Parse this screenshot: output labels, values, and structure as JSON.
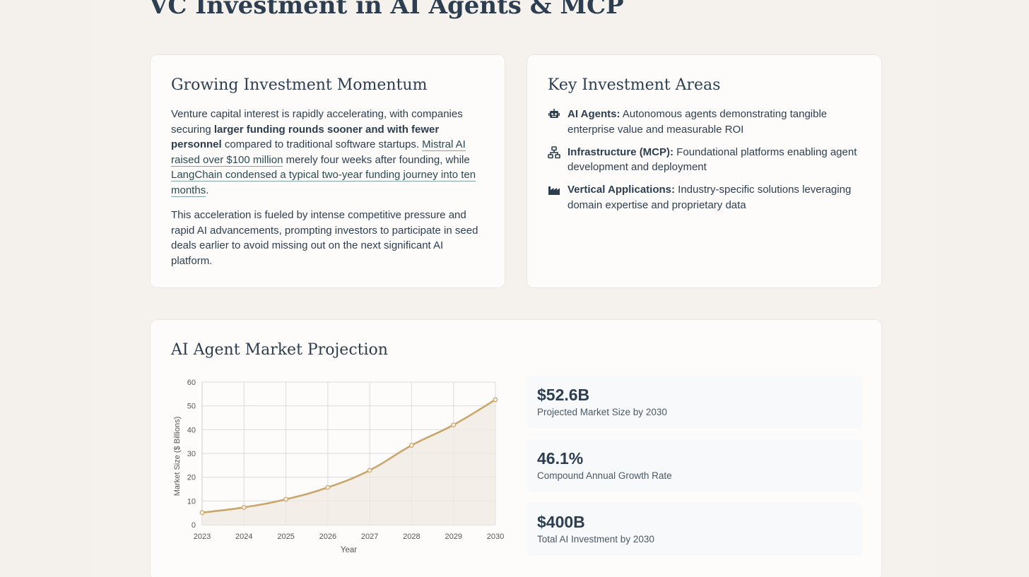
{
  "page": {
    "title": "VC Investment in AI Agents & MCP"
  },
  "momentum": {
    "heading": "Growing Investment Momentum",
    "p1_text1": "Venture capital interest is rapidly accelerating, with companies securing ",
    "p1_bold": "larger funding rounds sooner and with fewer personnel",
    "p1_text2": " compared to traditional software startups. ",
    "p1_link1": "Mistral AI raised over $100 million",
    "p1_text3": " merely four weeks after founding, while ",
    "p1_link2": "LangChain condensed a typical two-year funding journey into ten months",
    "p1_text4": ".",
    "p2": "This acceleration is fueled by intense competitive pressure and rapid AI advancements, prompting investors to participate in seed deals earlier to avoid missing out on the next significant AI platform."
  },
  "areas": {
    "heading": "Key Investment Areas",
    "items": [
      {
        "icon": "robot-icon",
        "label": "AI Agents:",
        "text": " Autonomous agents demonstrating tangible enterprise value and measurable ROI"
      },
      {
        "icon": "network-icon",
        "label": "Infrastructure (MCP):",
        "text": " Foundational platforms enabling agent development and deployment"
      },
      {
        "icon": "industry-icon",
        "label": "Vertical Applications:",
        "text": " Industry-specific solutions leveraging domain expertise and proprietary data"
      }
    ]
  },
  "projection": {
    "heading": "AI Agent Market Projection",
    "stats": [
      {
        "value": "$52.6B",
        "label": "Projected Market Size by 2030"
      },
      {
        "value": "46.1%",
        "label": "Compound Annual Growth Rate"
      },
      {
        "value": "$400B",
        "label": "Total AI Investment by 2030"
      }
    ]
  },
  "colors": {
    "line": "#c9a66b",
    "fill": "#f3efe8",
    "grid": "#dddddd",
    "text": "#2c3e50"
  },
  "chart_data": {
    "type": "line",
    "title": "",
    "xlabel": "Year",
    "ylabel": "Market Size ($ Billions)",
    "x": [
      "2023",
      "2024",
      "2025",
      "2026",
      "2027",
      "2028",
      "2029",
      "2030"
    ],
    "series": [
      {
        "values": [
          5.1,
          7.3,
          10.7,
          15.7,
          22.9,
          33.4,
          42.0,
          52.6
        ]
      }
    ],
    "ylim": [
      0,
      60
    ],
    "yticks": [
      0,
      10,
      20,
      30,
      40,
      50,
      60
    ],
    "grid": true,
    "area_fill": true,
    "legend": "none"
  }
}
